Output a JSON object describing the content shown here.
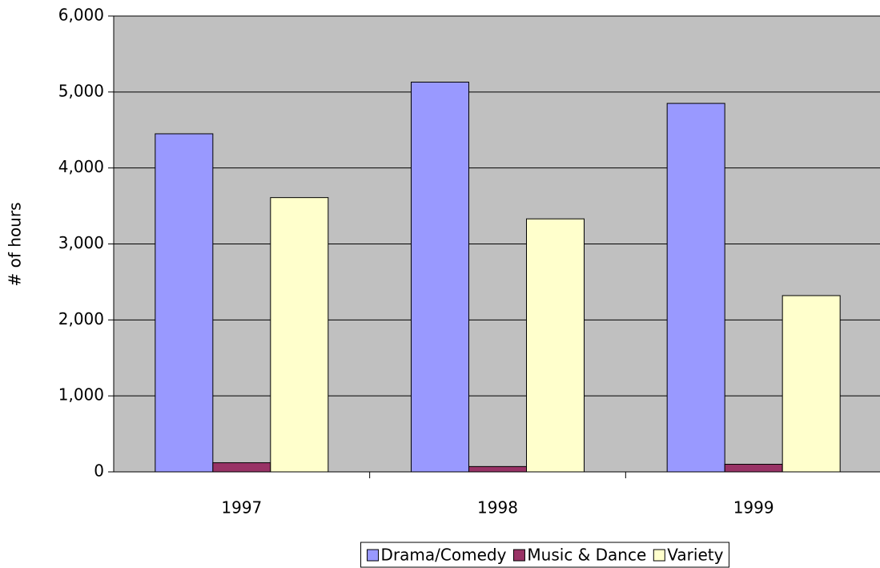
{
  "chart_data": {
    "type": "bar",
    "y_label": "# of hours",
    "categories": [
      "1997",
      "1998",
      "1999"
    ],
    "series": [
      {
        "name": "Drama/Comedy",
        "color": "#9999ff",
        "values": [
          4450,
          5130,
          4850
        ]
      },
      {
        "name": "Music & Dance",
        "color": "#993366",
        "values": [
          120,
          70,
          100
        ]
      },
      {
        "name": "Variety",
        "color": "#ffffcc",
        "values": [
          3610,
          3330,
          2320
        ]
      }
    ],
    "ylim": [
      0,
      6000
    ],
    "yticks": [
      {
        "value": 0,
        "label": "0"
      },
      {
        "value": 1000,
        "label": "1,000"
      },
      {
        "value": 2000,
        "label": "2,000"
      },
      {
        "value": 3000,
        "label": "3,000"
      },
      {
        "value": 4000,
        "label": "4,000"
      },
      {
        "value": 5000,
        "label": "5,000"
      },
      {
        "value": 6000,
        "label": "6,000"
      }
    ],
    "grid": true,
    "legend": "bottom",
    "plot_background": "#c0c0c0"
  }
}
